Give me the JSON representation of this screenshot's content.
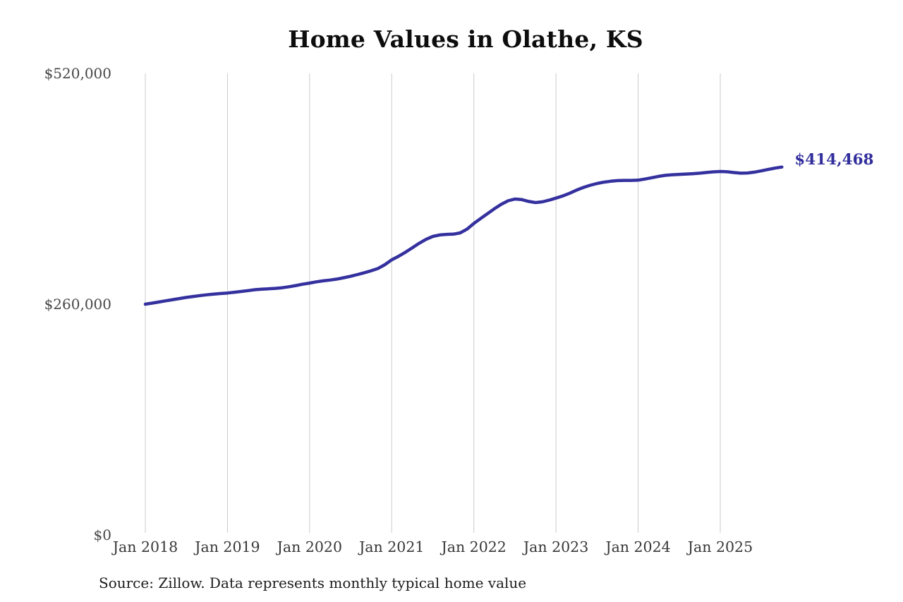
{
  "title": "Home Values in Olathe, KS",
  "source_note": "Source: Zillow. Data represents monthly typical home value",
  "colors": {
    "line": "#34319f",
    "end_label": "#312e9c",
    "grid": "#cbcbcb",
    "title_text": "#0d0d0d",
    "tick_text": "#373737",
    "source_text": "#1c1c1c"
  },
  "chart_data": {
    "type": "line",
    "title": "Home Values in Olathe, KS",
    "xlabel": "",
    "ylabel": "",
    "x_start": "Jan 2018",
    "x_end": "Oct 2025",
    "x_interval": "monthly",
    "x_tick_labels": [
      "Jan 2018",
      "Jan 2019",
      "Jan 2020",
      "Jan 2021",
      "Jan 2022",
      "Jan 2023",
      "Jan 2024",
      "Jan 2025"
    ],
    "x_tick_month_index": [
      0,
      12,
      24,
      36,
      48,
      60,
      72,
      84
    ],
    "y_ticks": [
      {
        "label": "$0",
        "value": 0
      },
      {
        "label": "$260,000",
        "value": 260000
      },
      {
        "label": "$520,000",
        "value": 520000
      }
    ],
    "ylim": [
      0,
      520000
    ],
    "grid": "vertical-only",
    "legend": "none",
    "last_value_label": "$414,468",
    "last_value": 414468,
    "series": [
      {
        "name": "Monthly typical home value",
        "values": [
          260000,
          261200,
          262500,
          263800,
          265100,
          266400,
          267600,
          268700,
          269700,
          270600,
          271400,
          272000,
          272600,
          273400,
          274300,
          275300,
          276300,
          276900,
          277300,
          277800,
          278500,
          279600,
          281000,
          282500,
          283800,
          285200,
          286300,
          287200,
          288300,
          289800,
          291500,
          293400,
          295500,
          297700,
          300200,
          304500,
          310000,
          314000,
          318500,
          323500,
          328500,
          333000,
          336300,
          338000,
          338600,
          338900,
          340300,
          344500,
          351000,
          356500,
          362000,
          367500,
          372500,
          376500,
          378500,
          377800,
          375800,
          374500,
          375300,
          377200,
          379500,
          382000,
          385000,
          388500,
          391500,
          394000,
          396000,
          397500,
          398500,
          399200,
          399500,
          399500,
          399700,
          401000,
          402500,
          404000,
          405200,
          405800,
          406200,
          406600,
          407000,
          407600,
          408400,
          409100,
          409500,
          409200,
          408300,
          407600,
          407800,
          408800,
          410200,
          411800,
          413300,
          414468
        ]
      }
    ]
  }
}
